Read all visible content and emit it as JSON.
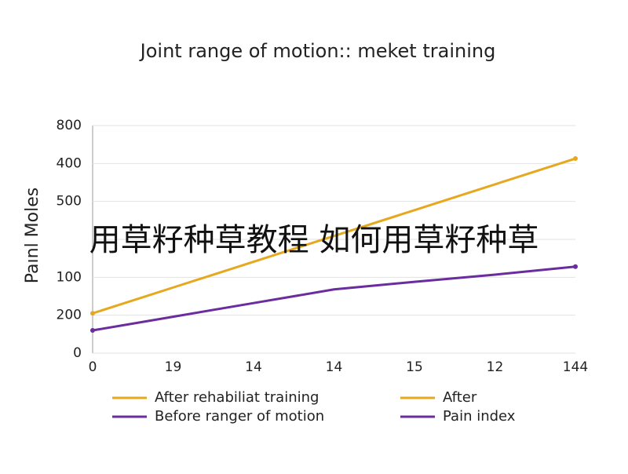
{
  "chart_data": {
    "type": "line",
    "title": "Joint range of motion:: meket training",
    "y_label": "Paınl Moles",
    "categories": [
      "0",
      "19",
      "14",
      "14",
      "15",
      "12",
      "144"
    ],
    "series": [
      {
        "name": "After rehabiliat training",
        "color": "#e6a81e",
        "values": [
          1.05,
          1.73,
          2.41,
          3.09,
          3.77,
          4.45,
          5.13
        ]
      },
      {
        "name": "Before ranger of motion",
        "color": "#6a2c9e",
        "values": [
          0.6,
          0.96,
          1.32,
          1.68,
          1.88,
          2.07,
          2.28
        ]
      }
    ],
    "extra_legend_entries": [
      {
        "name": "After",
        "color": "#e6a81e"
      },
      {
        "name": "Pain index",
        "color": "#6a2c9e"
      }
    ],
    "ylim": [
      0,
      6
    ],
    "yticks": [
      {
        "value": 0,
        "label": "0"
      },
      {
        "value": 1,
        "label": "200"
      },
      {
        "value": 2,
        "label": "100"
      },
      {
        "value": 3,
        "label": null
      },
      {
        "value": 4,
        "label": "500"
      },
      {
        "value": 5,
        "label": "400"
      },
      {
        "value": 6,
        "label": "800"
      }
    ],
    "grid": true
  },
  "watermark": "用草籽种草教程 如何用草籽种草"
}
